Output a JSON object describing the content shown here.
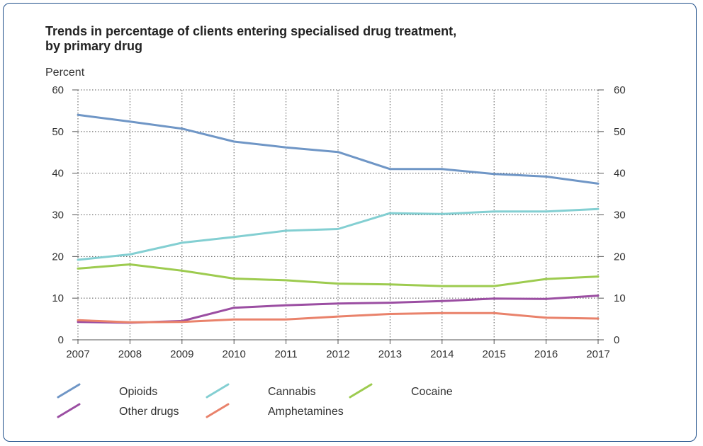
{
  "chart_data": {
    "type": "line",
    "title": "Trends in percentage of clients entering specialised drug treatment,",
    "title_line2": "by primary drug",
    "ylabel": "Percent",
    "xlabel": "",
    "x": [
      2007,
      2008,
      2009,
      2010,
      2011,
      2012,
      2013,
      2014,
      2015,
      2016,
      2017
    ],
    "ylim": [
      0,
      60
    ],
    "yticks": [
      0,
      10,
      20,
      30,
      40,
      50,
      60
    ],
    "grid": true,
    "legend_position": "bottom",
    "series": [
      {
        "name": "Opioids",
        "color": "#6f96c6",
        "values": [
          54,
          52.4,
          50.7,
          47.6,
          46.2,
          45.1,
          41,
          41,
          39.8,
          39.2,
          37.5
        ]
      },
      {
        "name": "Cannabis",
        "color": "#83cfd2",
        "values": [
          19.2,
          20.5,
          23.3,
          24.7,
          26.2,
          26.6,
          30.4,
          30.2,
          30.8,
          30.8,
          31.4
        ]
      },
      {
        "name": "Cocaine",
        "color": "#9dcb4f",
        "values": [
          17.1,
          18.1,
          16.6,
          14.7,
          14.3,
          13.5,
          13.3,
          12.9,
          12.9,
          14.6,
          15.2
        ]
      },
      {
        "name": "Other drugs",
        "color": "#9b4ea2",
        "values": [
          4.3,
          4.1,
          4.5,
          7.7,
          8.3,
          8.7,
          8.9,
          9.3,
          9.9,
          9.8,
          10.6
        ]
      },
      {
        "name": "Amphetamines",
        "color": "#e9826b",
        "values": [
          4.7,
          4.2,
          4.3,
          4.9,
          4.9,
          5.6,
          6.2,
          6.4,
          6.4,
          5.3,
          5.1
        ]
      }
    ]
  }
}
